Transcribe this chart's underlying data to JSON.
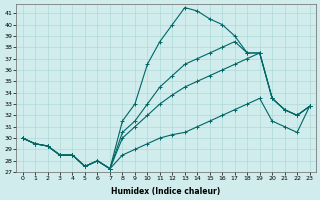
{
  "xlabel": "Humidex (Indice chaleur)",
  "xlim": [
    -0.5,
    23.5
  ],
  "ylim": [
    27,
    41.8
  ],
  "yticks": [
    27,
    28,
    29,
    30,
    31,
    32,
    33,
    34,
    35,
    36,
    37,
    38,
    39,
    40,
    41
  ],
  "xticks": [
    0,
    1,
    2,
    3,
    4,
    5,
    6,
    7,
    8,
    9,
    10,
    11,
    12,
    13,
    14,
    15,
    16,
    17,
    18,
    19,
    20,
    21,
    22,
    23
  ],
  "bg_color": "#d0ecec",
  "grid_color": "#a8d4d4",
  "line_color": "#006666",
  "line1_y": [
    30.0,
    29.5,
    29.3,
    28.5,
    28.5,
    27.5,
    28.0,
    27.3,
    31.5,
    33.0,
    36.5,
    38.5,
    40.0,
    41.5,
    41.2,
    40.5,
    40.0,
    39.0,
    37.5,
    37.5,
    33.5,
    32.5,
    32.0,
    32.8
  ],
  "line2_y": [
    30.0,
    29.5,
    29.3,
    28.5,
    28.5,
    27.5,
    28.0,
    27.3,
    30.5,
    31.5,
    33.0,
    34.5,
    35.5,
    36.5,
    37.0,
    37.5,
    38.0,
    38.5,
    37.5,
    37.5,
    33.5,
    32.5,
    32.0,
    32.8
  ],
  "line3_y": [
    30.0,
    29.5,
    29.3,
    28.5,
    28.5,
    27.5,
    28.0,
    27.3,
    30.0,
    31.0,
    32.0,
    33.0,
    33.8,
    34.5,
    35.0,
    35.5,
    36.0,
    36.5,
    37.0,
    37.5,
    33.5,
    32.5,
    32.0,
    32.8
  ],
  "line4_y": [
    30.0,
    29.5,
    29.3,
    28.5,
    28.5,
    27.5,
    28.0,
    27.3,
    28.5,
    29.0,
    29.5,
    30.0,
    30.3,
    30.5,
    31.0,
    31.5,
    32.0,
    32.5,
    33.0,
    33.5,
    31.5,
    31.0,
    30.5,
    32.8
  ]
}
